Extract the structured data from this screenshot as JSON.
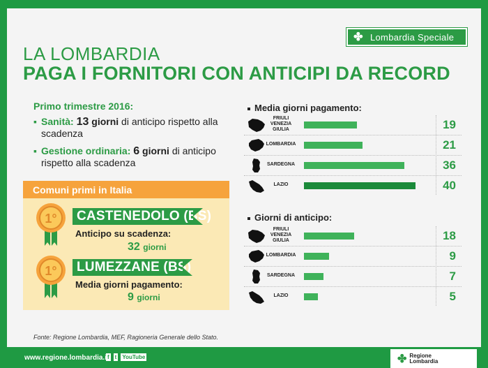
{
  "badge": {
    "label": "Lombardia Speciale",
    "icon": "clover-logo-icon"
  },
  "title": {
    "line1": "LA LOMBARDIA",
    "line2": "PAGA I FORNITORI CON ANTICIPI DA RECORD"
  },
  "summary": {
    "heading": "Primo trimestre 2016:",
    "items": [
      {
        "label": "Sanità:",
        "number": "13",
        "unit": "giorni",
        "rest": "di anticipo rispetto alla scadenza"
      },
      {
        "label": "Gestione ordinaria:",
        "number": "6",
        "unit": "giorni",
        "rest": "di anticipo rispetto alla scadenza"
      }
    ]
  },
  "comuni": {
    "heading": "Comuni primi in Italia",
    "entries": [
      {
        "medal": "1°",
        "name": "CASTENEDOLO (BS)",
        "label": "Anticipo su scadenza:",
        "value": "32",
        "unit": "giorni"
      },
      {
        "medal": "1°",
        "name": "LUMEZZANE (BS)",
        "label": "Media giorni pagamento:",
        "value": "9",
        "unit": "giorni"
      }
    ]
  },
  "chart_data": [
    {
      "type": "bar",
      "title": "Media giorni pagamento:",
      "categories": [
        "FRIULI VENEZIA GIULIA",
        "LOMBARDIA",
        "SARDEGNA",
        "LAZIO"
      ],
      "values": [
        19,
        21,
        36,
        40
      ],
      "highlight_color": "#1b8a3a",
      "bar_color": "#3fb25a"
    },
    {
      "type": "bar",
      "title": "Giorni di anticipo:",
      "categories": [
        "FRIULI VENEZIA GIULIA",
        "LOMBARDIA",
        "SARDEGNA",
        "LAZIO"
      ],
      "values": [
        18,
        9,
        7,
        5
      ],
      "highlight_color": "#1b8a3a",
      "bar_color": "#3fb25a"
    }
  ],
  "source": "Fonte: Regione Lombardia, MEF, Ragioneria Generale dello Stato.",
  "footer": {
    "site": "www.regione.lombardia.it",
    "social": [
      "f",
      "t",
      "YouTube"
    ],
    "logo_line1": "Regione",
    "logo_line2": "Lombardia"
  }
}
